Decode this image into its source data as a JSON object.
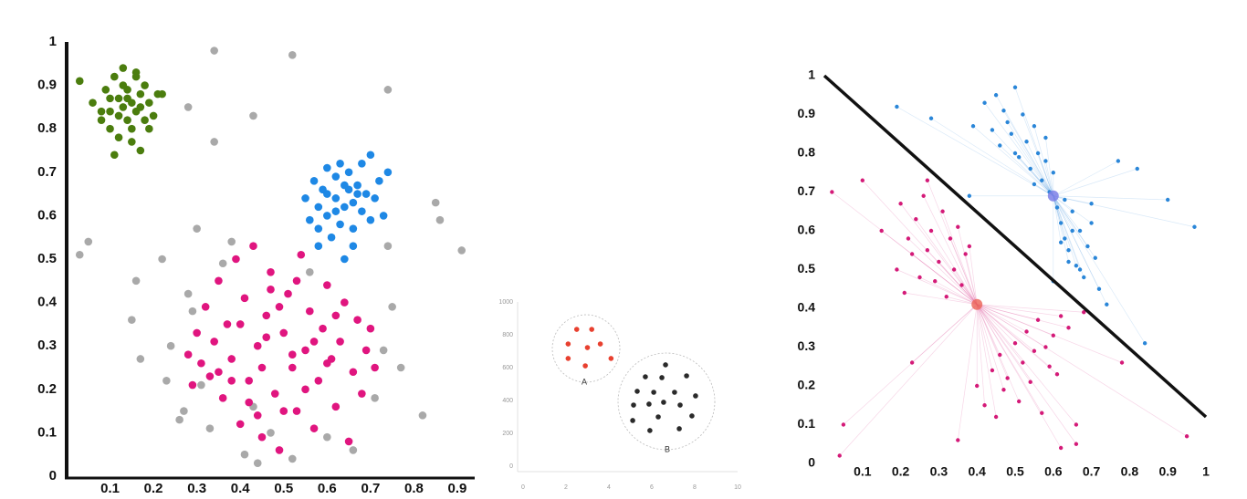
{
  "chart_data": [
    {
      "type": "scatter",
      "axes": true,
      "xlim": [
        0,
        0.94
      ],
      "ylim": [
        0,
        1
      ],
      "xticks": [
        0.1,
        0.2,
        0.3,
        0.4,
        0.5,
        0.6,
        0.7,
        0.8,
        0.9
      ],
      "yticks": [
        0,
        0.1,
        0.2,
        0.3,
        0.4,
        0.5,
        0.6,
        0.7,
        0.8,
        0.9,
        1
      ],
      "series": [
        {
          "color": "#a9a9a9",
          "marker": "dot",
          "x": [
            0.03,
            0.05,
            0.16,
            0.23,
            0.28,
            0.34,
            0.34,
            0.43,
            0.52,
            0.74,
            0.15,
            0.17,
            0.22,
            0.24,
            0.26,
            0.28,
            0.3,
            0.27,
            0.29,
            0.31,
            0.33,
            0.36,
            0.38,
            0.41,
            0.44,
            0.43,
            0.47,
            0.52,
            0.56,
            0.6,
            0.66,
            0.71,
            0.73,
            0.75,
            0.77,
            0.74,
            0.82,
            0.85,
            0.86,
            0.91
          ],
          "values": [
            0.51,
            0.54,
            0.45,
            0.22,
            0.85,
            0.98,
            0.77,
            0.83,
            0.97,
            0.89,
            0.36,
            0.27,
            0.5,
            0.3,
            0.13,
            0.42,
            0.57,
            0.15,
            0.38,
            0.21,
            0.11,
            0.49,
            0.54,
            0.05,
            0.03,
            0.16,
            0.1,
            0.04,
            0.47,
            0.09,
            0.06,
            0.18,
            0.29,
            0.39,
            0.25,
            0.53,
            0.14,
            0.63,
            0.59,
            0.52
          ]
        },
        {
          "color": "#4b7d0e",
          "marker": "dot",
          "x": [
            0.03,
            0.06,
            0.08,
            0.09,
            0.1,
            0.1,
            0.11,
            0.12,
            0.12,
            0.13,
            0.13,
            0.14,
            0.14,
            0.15,
            0.15,
            0.16,
            0.16,
            0.17,
            0.17,
            0.18,
            0.18,
            0.19,
            0.2,
            0.21,
            0.22,
            0.11,
            0.13,
            0.15,
            0.17,
            0.12,
            0.14,
            0.16,
            0.1,
            0.19,
            0.08
          ],
          "values": [
            0.91,
            0.86,
            0.82,
            0.89,
            0.84,
            0.8,
            0.92,
            0.87,
            0.78,
            0.85,
            0.94,
            0.82,
            0.89,
            0.86,
            0.8,
            0.92,
            0.84,
            0.75,
            0.88,
            0.82,
            0.9,
            0.86,
            0.83,
            0.88,
            0.88,
            0.74,
            0.9,
            0.77,
            0.85,
            0.83,
            0.87,
            0.93,
            0.87,
            0.8,
            0.84
          ]
        },
        {
          "color": "#1e88e5",
          "marker": "dot",
          "x": [
            0.55,
            0.56,
            0.57,
            0.58,
            0.58,
            0.59,
            0.6,
            0.6,
            0.61,
            0.62,
            0.62,
            0.63,
            0.63,
            0.64,
            0.64,
            0.65,
            0.65,
            0.66,
            0.66,
            0.67,
            0.68,
            0.68,
            0.69,
            0.7,
            0.7,
            0.71,
            0.72,
            0.73,
            0.74,
            0.6,
            0.62,
            0.64,
            0.66,
            0.58,
            0.67
          ],
          "values": [
            0.64,
            0.59,
            0.68,
            0.62,
            0.53,
            0.66,
            0.71,
            0.6,
            0.55,
            0.64,
            0.69,
            0.58,
            0.72,
            0.62,
            0.5,
            0.66,
            0.7,
            0.57,
            0.63,
            0.67,
            0.61,
            0.72,
            0.65,
            0.59,
            0.74,
            0.64,
            0.68,
            0.6,
            0.7,
            0.65,
            0.61,
            0.67,
            0.53,
            0.57,
            0.65
          ]
        },
        {
          "color": "#e0157f",
          "marker": "dot",
          "x": [
            0.28,
            0.29,
            0.3,
            0.31,
            0.32,
            0.33,
            0.34,
            0.35,
            0.36,
            0.37,
            0.38,
            0.39,
            0.4,
            0.41,
            0.42,
            0.43,
            0.44,
            0.45,
            0.46,
            0.47,
            0.48,
            0.49,
            0.5,
            0.51,
            0.52,
            0.53,
            0.54,
            0.55,
            0.56,
            0.57,
            0.58,
            0.59,
            0.6,
            0.61,
            0.62,
            0.63,
            0.64,
            0.65,
            0.66,
            0.67,
            0.68,
            0.69,
            0.7,
            0.71,
            0.4,
            0.45,
            0.5,
            0.55,
            0.35,
            0.42,
            0.47,
            0.52,
            0.57,
            0.62,
            0.44,
            0.49,
            0.38,
            0.6,
            0.53,
            0.46
          ],
          "values": [
            0.28,
            0.21,
            0.33,
            0.26,
            0.39,
            0.23,
            0.31,
            0.45,
            0.18,
            0.35,
            0.27,
            0.5,
            0.12,
            0.41,
            0.22,
            0.53,
            0.3,
            0.09,
            0.37,
            0.47,
            0.19,
            0.06,
            0.33,
            0.42,
            0.25,
            0.15,
            0.51,
            0.29,
            0.38,
            0.11,
            0.22,
            0.34,
            0.44,
            0.27,
            0.16,
            0.31,
            0.4,
            0.08,
            0.24,
            0.36,
            0.19,
            0.29,
            0.34,
            0.25,
            0.35,
            0.25,
            0.15,
            0.2,
            0.24,
            0.17,
            0.43,
            0.28,
            0.31,
            0.37,
            0.14,
            0.39,
            0.22,
            0.26,
            0.45,
            0.32
          ]
        }
      ]
    },
    {
      "type": "scatter",
      "axes": true,
      "xlim": [
        0,
        10
      ],
      "ylim": [
        0,
        1000
      ],
      "xticks": [
        0,
        2,
        4,
        6,
        8,
        10
      ],
      "yticks": [
        0,
        200,
        400,
        600,
        800,
        1000
      ],
      "annotations": [
        "A",
        "B"
      ],
      "series": [
        {
          "color": "#e8402f",
          "marker": "dot",
          "x": [
            2.5,
            3.2,
            2.1,
            3.0,
            3.6,
            2.1,
            2.9,
            4.1
          ],
          "values": [
            833,
            833,
            744,
            722,
            744,
            656,
            611,
            656
          ]
        },
        {
          "color": "#2a2a2a",
          "marker": "dot",
          "x": [
            6.64,
            5.7,
            6.47,
            7.62,
            5.32,
            6.09,
            7.06,
            8.04,
            5.87,
            6.55,
            7.32,
            5.15,
            7.87,
            6.3,
            5.11,
            5.91,
            7.28
          ],
          "values": [
            617,
            544,
            539,
            550,
            456,
            450,
            450,
            428,
            378,
            389,
            372,
            372,
            306,
            300,
            278,
            217,
            228
          ]
        }
      ]
    },
    {
      "type": "scatter",
      "axes": false,
      "xlim": [
        0,
        1
      ],
      "ylim": [
        0,
        1
      ],
      "xticks": [
        0.1,
        0.2,
        0.3,
        0.4,
        0.5,
        0.6,
        0.7,
        0.8,
        0.9,
        1
      ],
      "yticks": [
        0,
        0.1,
        0.2,
        0.3,
        0.4,
        0.5,
        0.6,
        0.7,
        0.8,
        0.9,
        1
      ],
      "series": [
        {
          "color": "#d41a78",
          "marker": "dot",
          "x": [
            0.02,
            0.05,
            0.1,
            0.15,
            0.19,
            0.2,
            0.21,
            0.22,
            0.23,
            0.24,
            0.25,
            0.26,
            0.27,
            0.28,
            0.29,
            0.3,
            0.31,
            0.32,
            0.33,
            0.34,
            0.35,
            0.36,
            0.37,
            0.38,
            0.4,
            0.42,
            0.44,
            0.45,
            0.46,
            0.47,
            0.48,
            0.5,
            0.51,
            0.52,
            0.53,
            0.54,
            0.55,
            0.56,
            0.57,
            0.58,
            0.59,
            0.6,
            0.61,
            0.62,
            0.64,
            0.66,
            0.68,
            0.78,
            0.95,
            0.04,
            0.35,
            0.62,
            0.66,
            0.23,
            0.27
          ],
          "values": [
            0.7,
            0.1,
            0.73,
            0.6,
            0.5,
            0.67,
            0.44,
            0.58,
            0.54,
            0.63,
            0.48,
            0.69,
            0.55,
            0.6,
            0.47,
            0.52,
            0.65,
            0.43,
            0.58,
            0.5,
            0.61,
            0.46,
            0.54,
            0.56,
            0.2,
            0.15,
            0.24,
            0.12,
            0.28,
            0.19,
            0.22,
            0.31,
            0.16,
            0.26,
            0.34,
            0.21,
            0.29,
            0.37,
            0.13,
            0.3,
            0.25,
            0.33,
            0.23,
            0.38,
            0.35,
            0.1,
            0.39,
            0.26,
            0.07,
            0.02,
            0.06,
            0.04,
            0.05,
            0.26,
            0.73
          ]
        },
        {
          "color": "#2a86d8",
          "marker": "dot",
          "x": [
            0.19,
            0.28,
            0.38,
            0.39,
            0.42,
            0.44,
            0.45,
            0.46,
            0.47,
            0.48,
            0.49,
            0.5,
            0.51,
            0.52,
            0.53,
            0.54,
            0.55,
            0.56,
            0.57,
            0.58,
            0.59,
            0.6,
            0.61,
            0.62,
            0.63,
            0.64,
            0.65,
            0.66,
            0.67,
            0.68,
            0.69,
            0.7,
            0.71,
            0.72,
            0.74,
            0.77,
            0.82,
            0.9,
            0.97,
            0.84,
            0.55,
            0.5,
            0.6,
            0.63,
            0.65,
            0.67,
            0.58,
            0.64,
            0.7,
            0.62
          ],
          "values": [
            0.92,
            0.89,
            0.69,
            0.87,
            0.93,
            0.86,
            0.95,
            0.82,
            0.91,
            0.88,
            0.85,
            0.97,
            0.79,
            0.9,
            0.83,
            0.76,
            0.87,
            0.8,
            0.73,
            0.78,
            0.7,
            0.75,
            0.66,
            0.62,
            0.58,
            0.55,
            0.65,
            0.51,
            0.6,
            0.48,
            0.56,
            0.62,
            0.53,
            0.45,
            0.41,
            0.78,
            0.76,
            0.68,
            0.61,
            0.31,
            0.72,
            0.8,
            0.47,
            0.68,
            0.6,
            0.5,
            0.84,
            0.52,
            0.67,
            0.57
          ]
        },
        {
          "color": "#ec6a5e",
          "marker": "centroid",
          "x": [
            0.4
          ],
          "values": [
            0.41
          ]
        },
        {
          "color": "#7d7fe6",
          "marker": "centroid",
          "x": [
            0.6
          ],
          "values": [
            0.69
          ]
        },
        {
          "color": "#111111",
          "marker": "line",
          "x": [
            0,
            1
          ],
          "values": [
            1,
            0.12
          ]
        }
      ]
    }
  ]
}
